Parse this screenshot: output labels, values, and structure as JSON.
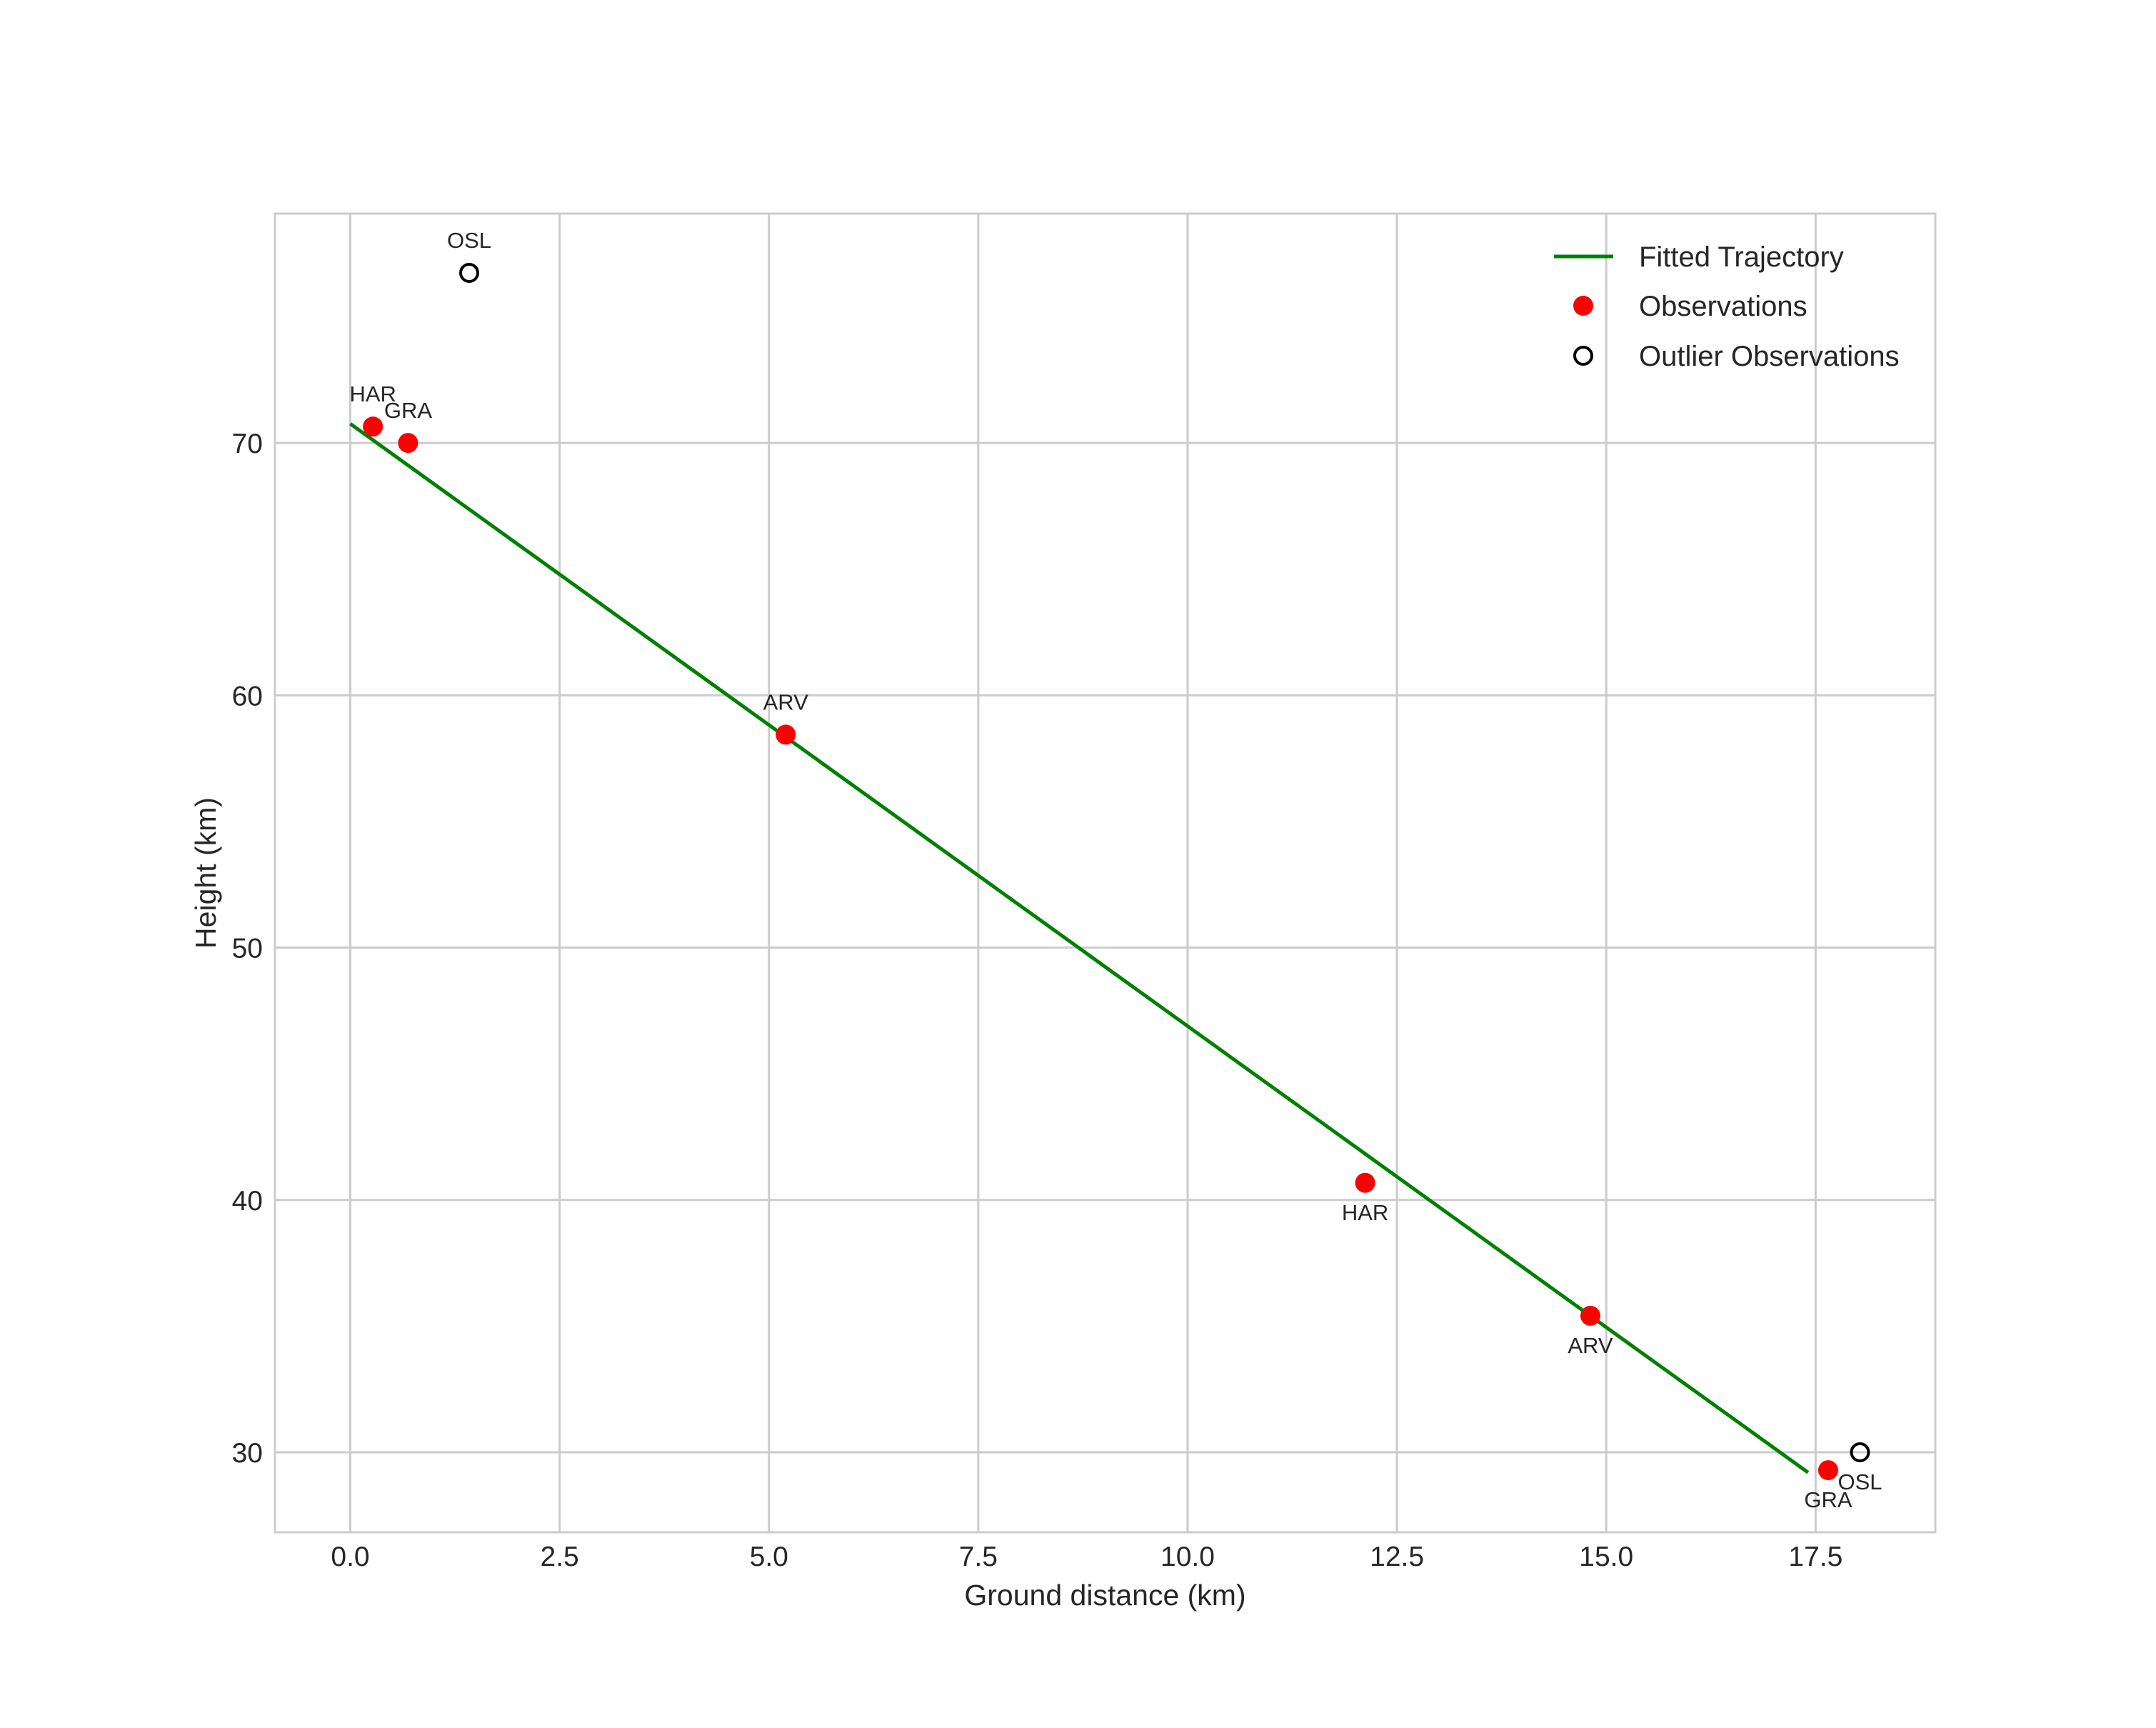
{
  "chart_data": {
    "type": "scatter",
    "title": "",
    "xlabel": "Ground distance (km)",
    "ylabel": "Height (km)",
    "xlim": [
      -0.9,
      18.93
    ],
    "ylim": [
      26.83,
      79.09
    ],
    "xticks": [
      0.0,
      2.5,
      5.0,
      7.5,
      10.0,
      12.5,
      15.0,
      17.5
    ],
    "xtick_labels": [
      "0.0",
      "2.5",
      "5.0",
      "7.5",
      "10.0",
      "12.5",
      "15.0",
      "17.5"
    ],
    "yticks": [
      30,
      40,
      50,
      60,
      70
    ],
    "ytick_labels": [
      "30",
      "40",
      "50",
      "60",
      "70"
    ],
    "grid": true,
    "legend_position": "upper right",
    "series": [
      {
        "name": "Fitted Trajectory",
        "kind": "line",
        "color": "#008000",
        "x": [
          0.0,
          17.41
        ],
        "y": [
          70.76,
          29.2
        ]
      },
      {
        "name": "Observations",
        "kind": "scatter",
        "color": "#ff0000",
        "points": [
          {
            "label": "HAR",
            "x": 0.27,
            "y": 70.65,
            "label_pos": "above"
          },
          {
            "label": "GRA",
            "x": 0.69,
            "y": 70.0,
            "label_pos": "above"
          },
          {
            "label": "ARV",
            "x": 5.2,
            "y": 58.44,
            "label_pos": "above"
          },
          {
            "label": "HAR",
            "x": 12.12,
            "y": 40.68,
            "label_pos": "below"
          },
          {
            "label": "ARV",
            "x": 14.81,
            "y": 35.41,
            "label_pos": "below"
          },
          {
            "label": "GRA",
            "x": 17.65,
            "y": 29.29,
            "label_pos": "below"
          }
        ]
      },
      {
        "name": "Outlier Observations",
        "kind": "scatter",
        "color": "#000000",
        "fill": "none",
        "points": [
          {
            "label": "OSL",
            "x": 1.42,
            "y": 76.74,
            "label_pos": "above"
          },
          {
            "label": "OSL",
            "x": 18.03,
            "y": 30.0,
            "label_pos": "below"
          }
        ]
      }
    ],
    "legend": [
      {
        "label": "Fitted Trajectory",
        "symbol": "line",
        "color": "#008000"
      },
      {
        "label": "Observations",
        "symbol": "filled-circle",
        "color": "#ff0000"
      },
      {
        "label": "Outlier Observations",
        "symbol": "open-circle",
        "color": "#000000"
      }
    ]
  },
  "style": {
    "grid_color": "#cccccc",
    "frame_color": "#cccccc",
    "text_color": "#262626"
  }
}
